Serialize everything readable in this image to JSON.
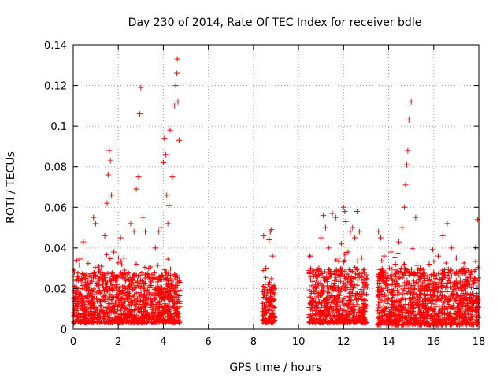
{
  "chart_data": {
    "type": "scatter",
    "title": "Day 230 of 2014, Rate Of TEC Index for receiver bdle",
    "xlabel": "GPS time / hours",
    "ylabel": "ROTI / TECUs",
    "xlim": [
      0,
      18
    ],
    "ylim": [
      0,
      0.14
    ],
    "xticks": [
      0,
      2,
      4,
      6,
      8,
      10,
      12,
      14,
      16,
      18
    ],
    "xtick_labels": [
      "0",
      "2",
      "4",
      "6",
      "8",
      "10",
      "12",
      "14",
      "16",
      "18"
    ],
    "yticks": [
      0,
      0.02,
      0.04,
      0.06,
      0.08,
      0.1,
      0.12,
      0.14
    ],
    "ytick_labels": [
      "0",
      "0.02",
      "0.04",
      "0.06",
      "0.08",
      "0.1",
      "0.12",
      "0.14"
    ],
    "grid": true,
    "marker": "+",
    "color": "#ff0000",
    "series": [
      {
        "name": "ROTI",
        "x": [
          0.05,
          0.15,
          0.3,
          0.45,
          0.6,
          0.75,
          0.9,
          1.0,
          1.1,
          1.25,
          1.4,
          1.5,
          1.55,
          1.6,
          1.65,
          1.7,
          1.8,
          1.95,
          2.1,
          2.25,
          2.4,
          2.55,
          2.7,
          2.8,
          2.9,
          2.95,
          3.0,
          3.1,
          3.2,
          3.35,
          3.5,
          3.65,
          3.8,
          3.9,
          4.0,
          4.05,
          4.1,
          4.15,
          4.2,
          4.25,
          4.3,
          4.4,
          4.5,
          4.55,
          4.6,
          4.62,
          4.65,
          4.7,
          8.45,
          8.55,
          8.65,
          8.7,
          8.75,
          8.8,
          8.85,
          8.9,
          10.5,
          10.6,
          10.75,
          10.9,
          11.0,
          11.1,
          11.2,
          11.35,
          11.5,
          11.65,
          11.8,
          11.9,
          12.0,
          12.05,
          12.1,
          12.2,
          12.3,
          12.4,
          12.5,
          12.6,
          12.7,
          12.8,
          12.9,
          13.0,
          13.55,
          13.65,
          13.8,
          13.95,
          14.1,
          14.3,
          14.45,
          14.6,
          14.7,
          14.75,
          14.8,
          14.85,
          14.9,
          15.0,
          15.2,
          15.4,
          15.6,
          15.8,
          16.0,
          16.2,
          16.4,
          16.6,
          16.8,
          17.0,
          17.2,
          17.4,
          17.6,
          17.8,
          17.95
        ],
        "y": [
          0.028,
          0.034,
          0.02,
          0.043,
          0.015,
          0.012,
          0.055,
          0.052,
          0.018,
          0.031,
          0.046,
          0.062,
          0.076,
          0.088,
          0.083,
          0.066,
          0.038,
          0.022,
          0.045,
          0.035,
          0.018,
          0.052,
          0.048,
          0.069,
          0.075,
          0.106,
          0.119,
          0.055,
          0.048,
          0.03,
          0.025,
          0.04,
          0.048,
          0.05,
          0.082,
          0.094,
          0.086,
          0.066,
          0.052,
          0.061,
          0.098,
          0.075,
          0.11,
          0.12,
          0.126,
          0.133,
          0.112,
          0.093,
          0.046,
          0.03,
          0.022,
          0.044,
          0.048,
          0.049,
          0.036,
          0.018,
          0.036,
          0.028,
          0.022,
          0.03,
          0.045,
          0.056,
          0.05,
          0.04,
          0.057,
          0.055,
          0.035,
          0.042,
          0.06,
          0.058,
          0.053,
          0.038,
          0.048,
          0.05,
          0.045,
          0.058,
          0.048,
          0.035,
          0.028,
          0.022,
          0.048,
          0.045,
          0.036,
          0.025,
          0.038,
          0.032,
          0.043,
          0.05,
          0.06,
          0.071,
          0.081,
          0.088,
          0.103,
          0.112,
          0.055,
          0.03,
          0.025,
          0.032,
          0.028,
          0.036,
          0.046,
          0.052,
          0.04,
          0.035,
          0.028,
          0.03,
          0.022,
          0.025,
          0.054
        ]
      }
    ],
    "background_bands": [
      {
        "x_start": 0.0,
        "x_end": 4.75,
        "y_low": 0.003,
        "y_high": 0.028
      },
      {
        "x_start": 8.4,
        "x_end": 8.95,
        "y_low": 0.003,
        "y_high": 0.022
      },
      {
        "x_start": 10.45,
        "x_end": 13.05,
        "y_low": 0.003,
        "y_high": 0.03
      },
      {
        "x_start": 13.5,
        "x_end": 18.0,
        "y_low": 0.002,
        "y_high": 0.03
      }
    ]
  }
}
